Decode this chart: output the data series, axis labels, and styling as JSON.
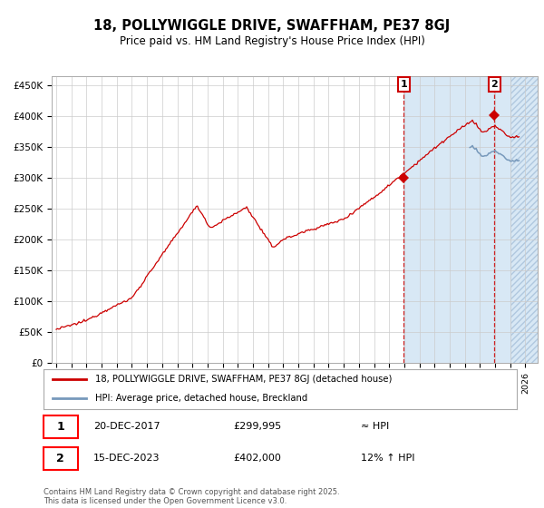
{
  "title": "18, POLLYWIGGLE DRIVE, SWAFFHAM, PE37 8GJ",
  "subtitle": "Price paid vs. HM Land Registry's House Price Index (HPI)",
  "hpi_color": "#7799bb",
  "price_color": "#cc0000",
  "plot_bg_color": "#ffffff",
  "grid_color": "#cccccc",
  "ylabel_ticks": [
    "£0",
    "£50K",
    "£100K",
    "£150K",
    "£200K",
    "£250K",
    "£300K",
    "£350K",
    "£400K",
    "£450K"
  ],
  "ytick_values": [
    0,
    50000,
    100000,
    150000,
    200000,
    250000,
    300000,
    350000,
    400000,
    450000
  ],
  "ylim": [
    0,
    465000
  ],
  "xlim_start": 1994.7,
  "xlim_end": 2026.8,
  "sale1_x": 2017.96,
  "sale1_y": 299995,
  "sale1_date": "20-DEC-2017",
  "sale1_price": "£299,995",
  "sale1_hpi": "≈ HPI",
  "sale2_x": 2023.96,
  "sale2_y": 402000,
  "sale2_date": "15-DEC-2023",
  "sale2_price": "£402,000",
  "sale2_hpi": "12% ↑ HPI",
  "legend_line1": "18, POLLYWIGGLE DRIVE, SWAFFHAM, PE37 8GJ (detached house)",
  "legend_line2": "HPI: Average price, detached house, Breckland",
  "footer": "Contains HM Land Registry data © Crown copyright and database right 2025.\nThis data is licensed under the Open Government Licence v3.0.",
  "shaded_start": 2017.96,
  "shaded_end": 2026.8,
  "hatch_start": 2025.0
}
